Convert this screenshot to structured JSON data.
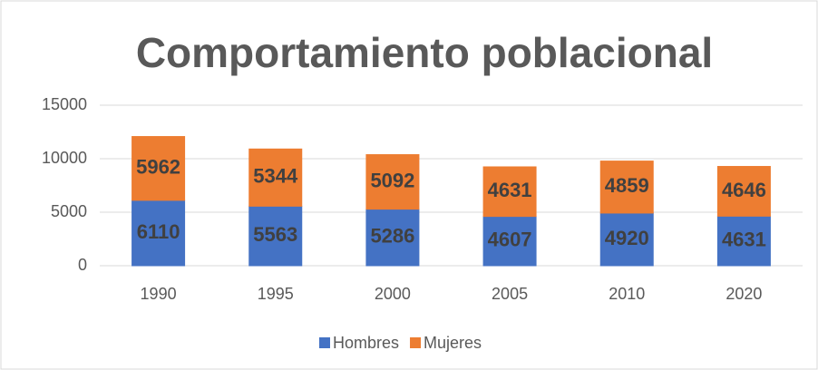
{
  "chart_data": {
    "type": "bar",
    "stacked": true,
    "title": "Comportamiento poblacional",
    "categories": [
      "1990",
      "1995",
      "2000",
      "2005",
      "2010",
      "2020"
    ],
    "series": [
      {
        "name": "Hombres",
        "color": "#4472c4",
        "values": [
          6110,
          5563,
          5286,
          4607,
          4920,
          4631
        ]
      },
      {
        "name": "Mujeres",
        "color": "#ed7d31",
        "values": [
          5962,
          5344,
          5092,
          4631,
          4859,
          4646
        ]
      }
    ],
    "ylim": [
      0,
      15000
    ],
    "yticks": [
      0,
      5000,
      10000,
      15000
    ],
    "grid": true,
    "legend": "bottom"
  }
}
